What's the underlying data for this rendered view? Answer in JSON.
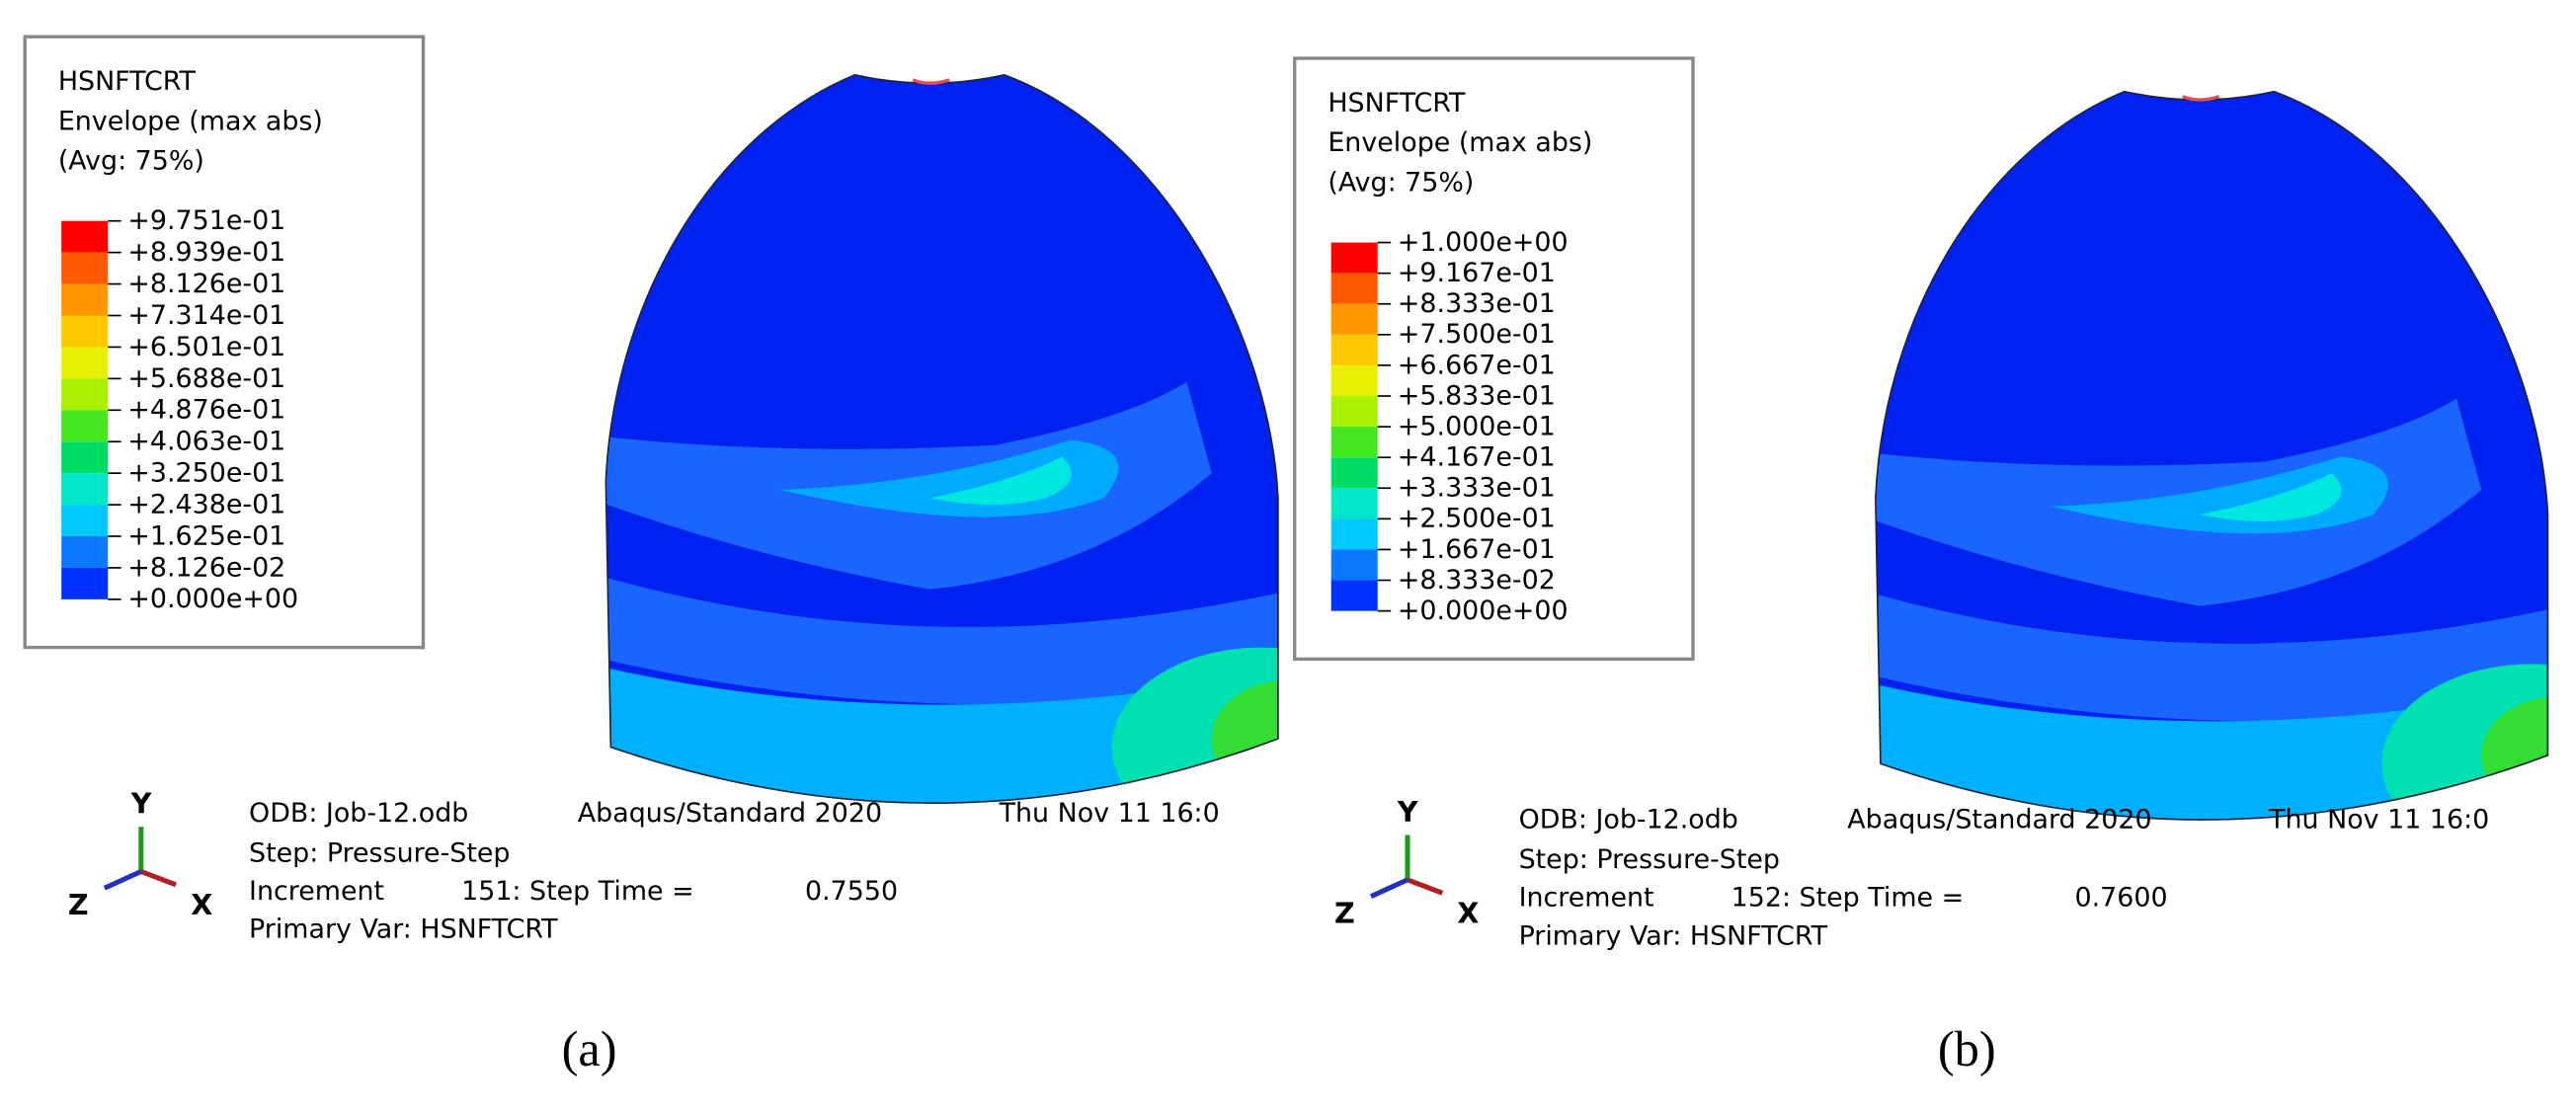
{
  "panels": [
    {
      "legend": {
        "title": [
          "HSNFTCRT",
          "Envelope (max abs)",
          "(Avg: 75%)"
        ],
        "values": [
          "+9.751e-01",
          "+8.939e-01",
          "+8.126e-01",
          "+7.314e-01",
          "+6.501e-01",
          "+5.688e-01",
          "+4.876e-01",
          "+4.063e-01",
          "+3.250e-01",
          "+2.438e-01",
          "+1.625e-01",
          "+8.126e-02",
          "+0.000e+00"
        ]
      },
      "info": {
        "odb": "ODB: Job-12.odb",
        "solver": "Abaqus/Standard 2020",
        "date": "Thu Nov 11 16:0",
        "step": "Step: Pressure-Step",
        "increment": "Increment",
        "increment_value": "151: Step Time =",
        "step_time": "0.7550",
        "primary_var": "Primary Var: HSNFTCRT"
      },
      "triad": {
        "y": "Y",
        "z": "Z",
        "x": "X"
      },
      "caption": "(a)"
    },
    {
      "legend": {
        "title": [
          "HSNFTCRT",
          "Envelope (max abs)",
          "(Avg: 75%)"
        ],
        "values": [
          "+1.000e+00",
          "+9.167e-01",
          "+8.333e-01",
          "+7.500e-01",
          "+6.667e-01",
          "+5.833e-01",
          "+5.000e-01",
          "+4.167e-01",
          "+3.333e-01",
          "+2.500e-01",
          "+1.667e-01",
          "+8.333e-02",
          "+0.000e+00"
        ]
      },
      "info": {
        "odb": "ODB: Job-12.odb",
        "solver": "Abaqus/Standard 2020",
        "date": "Thu Nov 11 16:0",
        "step": "Step: Pressure-Step",
        "increment": "Increment",
        "increment_value": "152: Step Time =",
        "step_time": "0.7600",
        "primary_var": "Primary Var: HSNFTCRT"
      },
      "triad": {
        "y": "Y",
        "z": "Z",
        "x": "X"
      },
      "caption": "(b)"
    }
  ]
}
